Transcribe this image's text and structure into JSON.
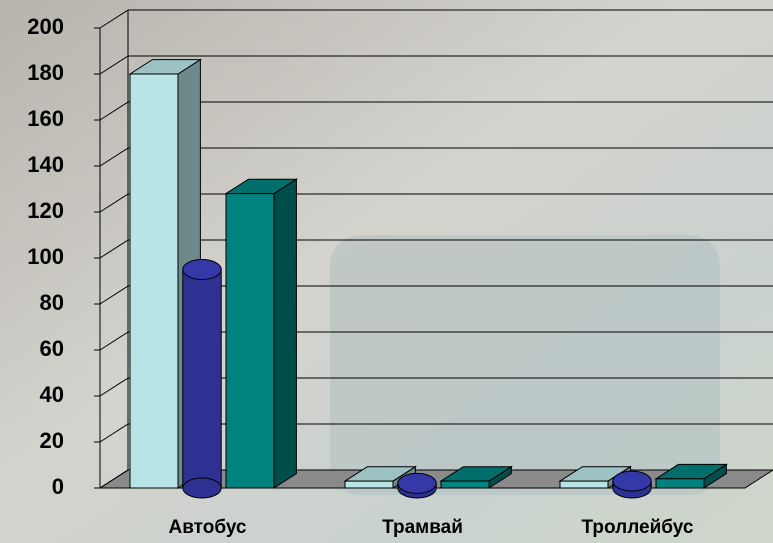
{
  "chart_data": {
    "type": "bar",
    "categories": [
      "Автобус",
      "Трамвай",
      "Троллейбус"
    ],
    "series": [
      {
        "color": "#b8e4e6",
        "shape": "box",
        "values": [
          180,
          3,
          3
        ]
      },
      {
        "color": "#2e3192",
        "shape": "cylinder",
        "values": [
          95,
          2,
          3
        ]
      },
      {
        "color": "#00827f",
        "shape": "box",
        "values": [
          128,
          3,
          4
        ]
      }
    ],
    "ylim": [
      0,
      200
    ],
    "yticks": [
      0,
      20,
      40,
      60,
      80,
      100,
      120,
      140,
      160,
      180,
      200
    ],
    "grid": true
  }
}
